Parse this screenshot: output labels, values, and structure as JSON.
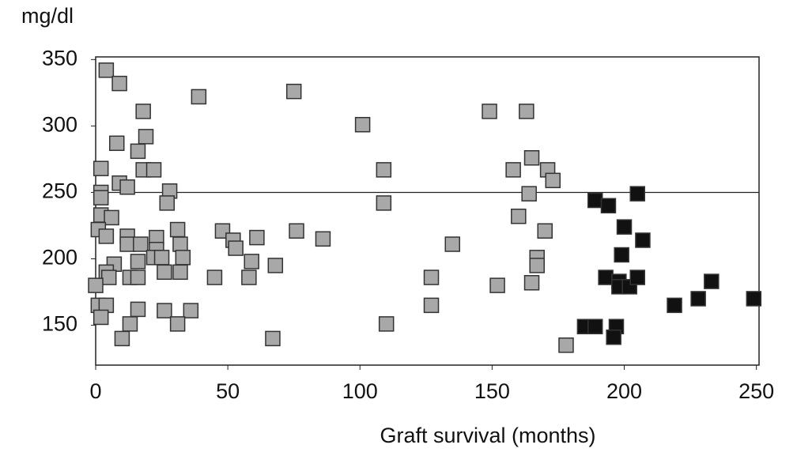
{
  "chart_data": {
    "type": "scatter",
    "x_label": "Graft survival (months)",
    "y_label": "mg/dl",
    "xlim": [
      0,
      251
    ],
    "ylim": [
      120,
      352
    ],
    "xticks": [
      0,
      50,
      100,
      150,
      200,
      250
    ],
    "yticks": [
      150,
      200,
      250,
      300,
      350
    ],
    "reference_line": 250,
    "series": [
      {
        "color": "#a8a8a8",
        "x": [
          4,
          9,
          8,
          16,
          18,
          19,
          18,
          22,
          2,
          2,
          2,
          9,
          12,
          28,
          27,
          2,
          6,
          1,
          4,
          12,
          12,
          17,
          23,
          23,
          22,
          25,
          31,
          32,
          33,
          16,
          7,
          4,
          5,
          13,
          16,
          26,
          32,
          0,
          1,
          4,
          2,
          16,
          13,
          10,
          26,
          36,
          31,
          39,
          45,
          48,
          52,
          53,
          61,
          59,
          58,
          68,
          67,
          75,
          76,
          86,
          101,
          109,
          109,
          110,
          127,
          127,
          135,
          149,
          152,
          158,
          163,
          160,
          164,
          165,
          165,
          167,
          167,
          170,
          171,
          173,
          178
        ],
        "values": [
          342,
          332,
          287,
          281,
          311,
          292,
          267,
          267,
          268,
          250,
          246,
          257,
          254,
          251,
          242,
          233,
          231,
          222,
          217,
          217,
          211,
          211,
          216,
          207,
          201,
          201,
          222,
          211,
          201,
          198,
          196,
          190,
          186,
          186,
          186,
          190,
          190,
          180,
          165,
          165,
          156,
          162,
          151,
          140,
          161,
          161,
          151,
          322,
          186,
          221,
          214,
          208,
          216,
          198,
          186,
          195,
          140,
          326,
          221,
          215,
          301,
          267,
          242,
          151,
          186,
          165,
          211,
          311,
          180,
          267,
          311,
          232,
          249,
          276,
          182,
          201,
          195,
          221,
          267,
          259,
          135
        ]
      },
      {
        "color": "#111111",
        "x": [
          185,
          189,
          189,
          194,
          193,
          200,
          199,
          197,
          196,
          198,
          198,
          202,
          205,
          207,
          205,
          219,
          228,
          233,
          249
        ],
        "values": [
          149,
          149,
          244,
          240,
          186,
          224,
          203,
          149,
          141,
          183,
          179,
          179,
          249,
          214,
          186,
          165,
          170,
          183,
          170
        ]
      }
    ]
  }
}
